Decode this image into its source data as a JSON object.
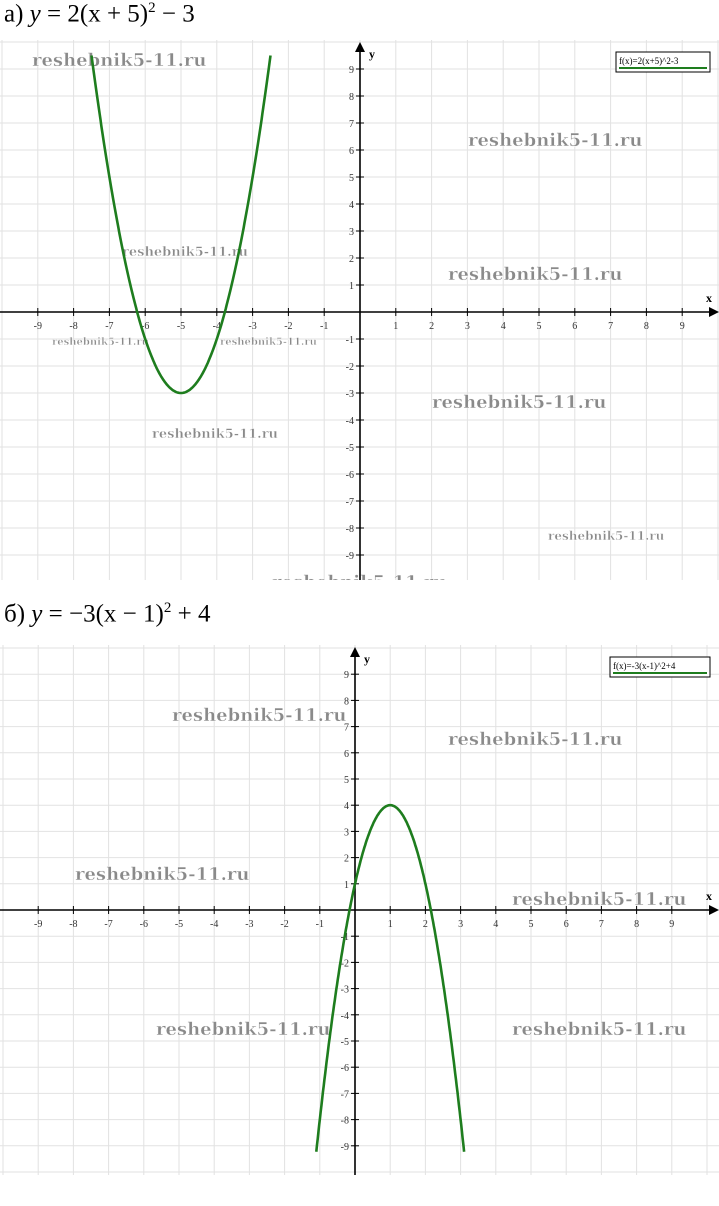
{
  "watermark": "reshebnik5-11.ru",
  "colors": {
    "curve": "#1e7d1e",
    "grid": "#e2e2e2",
    "axis": "#000000",
    "watermark": "#8a8a8a"
  },
  "chart_data": [
    {
      "type": "line",
      "title_prefix": "а)",
      "title_y": "y",
      "title_base": " = 2(x + 5)",
      "title_exp": "2",
      "title_tail": " − 3",
      "legend": "f(x)=2(x+5)^2-3",
      "legend_placement": "top-right",
      "xlabel": "x",
      "ylabel": "y",
      "xlim": [
        -10,
        10
      ],
      "ylim": [
        -10,
        10
      ],
      "xticks": [
        -9,
        -8,
        -7,
        -6,
        -5,
        -4,
        -3,
        -2,
        -1,
        1,
        2,
        3,
        4,
        5,
        6,
        7,
        8,
        9
      ],
      "yticks": [
        9,
        8,
        7,
        6,
        5,
        4,
        3,
        2,
        1,
        -1,
        -2,
        -3,
        -4,
        -5,
        -6,
        -7,
        -8,
        -9
      ],
      "grid": true,
      "function": {
        "a": 2,
        "h": -5,
        "k": -3
      },
      "vertex": [
        -5,
        -3
      ],
      "x_range": [
        -7.5,
        -2.5
      ]
    },
    {
      "type": "line",
      "title_prefix": "б)",
      "title_y": "y",
      "title_base": " = −3(x − 1)",
      "title_exp": "2",
      "title_tail": " + 4",
      "legend": "f(x)=-3(x-1)^2+4",
      "legend_placement": "top-right",
      "xlabel": "x",
      "ylabel": "y",
      "xlim": [
        -10,
        10
      ],
      "ylim": [
        -10,
        10
      ],
      "xticks": [
        -9,
        -8,
        -7,
        -6,
        -5,
        -4,
        -3,
        -2,
        -1,
        1,
        2,
        3,
        4,
        5,
        6,
        7,
        8,
        9
      ],
      "yticks": [
        9,
        8,
        7,
        6,
        5,
        4,
        3,
        2,
        1,
        -1,
        -2,
        -3,
        -4,
        -5,
        -6,
        -7,
        -8,
        -9
      ],
      "grid": true,
      "function": {
        "a": -3,
        "h": 1,
        "k": 4
      },
      "vertex": [
        1,
        4
      ],
      "x_range": [
        -1.1,
        3.1
      ]
    }
  ]
}
